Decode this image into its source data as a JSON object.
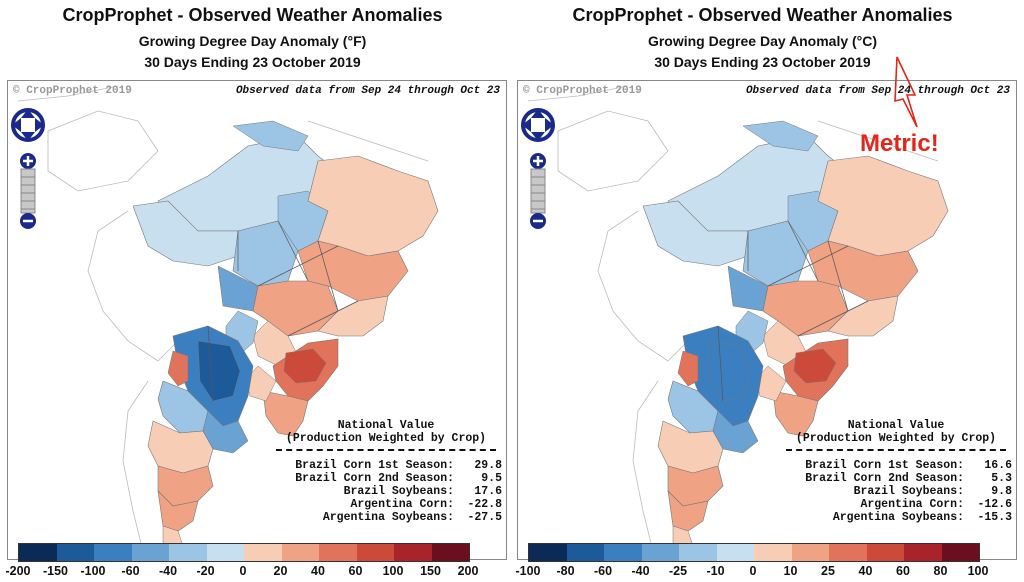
{
  "panels": [
    {
      "title": "CropProphet - Observed Weather Anomalies",
      "subtitle": "Growing Degree Day Anomaly (°F)",
      "period": "30 Days Ending 23 October 2019",
      "copyright": "© CropProphet 2019",
      "observed": "Observed data from Sep 24 through Oct 23",
      "national_title_1": "National Value",
      "national_title_2": "(Production Weighted by Crop)",
      "national_values": [
        {
          "label": "Brazil Corn 1st Season:",
          "value": "29.8"
        },
        {
          "label": "Brazil Corn 2nd Season:",
          "value": "9.5"
        },
        {
          "label": "Brazil Soybeans:",
          "value": "17.6"
        },
        {
          "label": "Argentina Corn:",
          "value": "-22.8"
        },
        {
          "label": "Argentina Soybeans:",
          "value": "-27.5"
        }
      ],
      "legend_ticks": [
        "-200",
        "-150",
        "-100",
        "-60",
        "-40",
        "-20",
        "0",
        "20",
        "40",
        "60",
        "100",
        "150",
        "200"
      ]
    },
    {
      "title": "CropProphet - Observed Weather Anomalies",
      "subtitle": "Growing Degree Day Anomaly (°C)",
      "period": "30 Days Ending 23 October 2019",
      "copyright": "© CropProphet 2019",
      "observed": "Observed data from Sep 24 through Oct 23",
      "national_title_1": "National Value",
      "national_title_2": "(Production Weighted by Crop)",
      "national_values": [
        {
          "label": "Brazil Corn 1st Season:",
          "value": "16.6"
        },
        {
          "label": "Brazil Corn 2nd Season:",
          "value": "5.3"
        },
        {
          "label": "Brazil Soybeans:",
          "value": "9.8"
        },
        {
          "label": "Argentina Corn:",
          "value": "-12.6"
        },
        {
          "label": "Argentina Soybeans:",
          "value": "-15.3"
        }
      ],
      "legend_ticks": [
        "-100",
        "-80",
        "-60",
        "-40",
        "-25",
        "-10",
        "0",
        "10",
        "25",
        "40",
        "60",
        "80",
        "100"
      ]
    }
  ],
  "legend_colors": [
    "#0b2a55",
    "#1d5a9a",
    "#3b7fc0",
    "#6aa2d4",
    "#9cc4e4",
    "#c8dff0",
    "#f7cdb6",
    "#f0a285",
    "#e0735a",
    "#cc4a3a",
    "#a8232a",
    "#6b0f1e"
  ],
  "annotation": "Metric!",
  "colors": {
    "annotation": "#e3261c",
    "nav": "#1a2a8c"
  },
  "icons": [
    "pan-arrows-icon",
    "zoom-in-icon",
    "zoom-out-icon",
    "arrow-annotation-icon"
  ]
}
